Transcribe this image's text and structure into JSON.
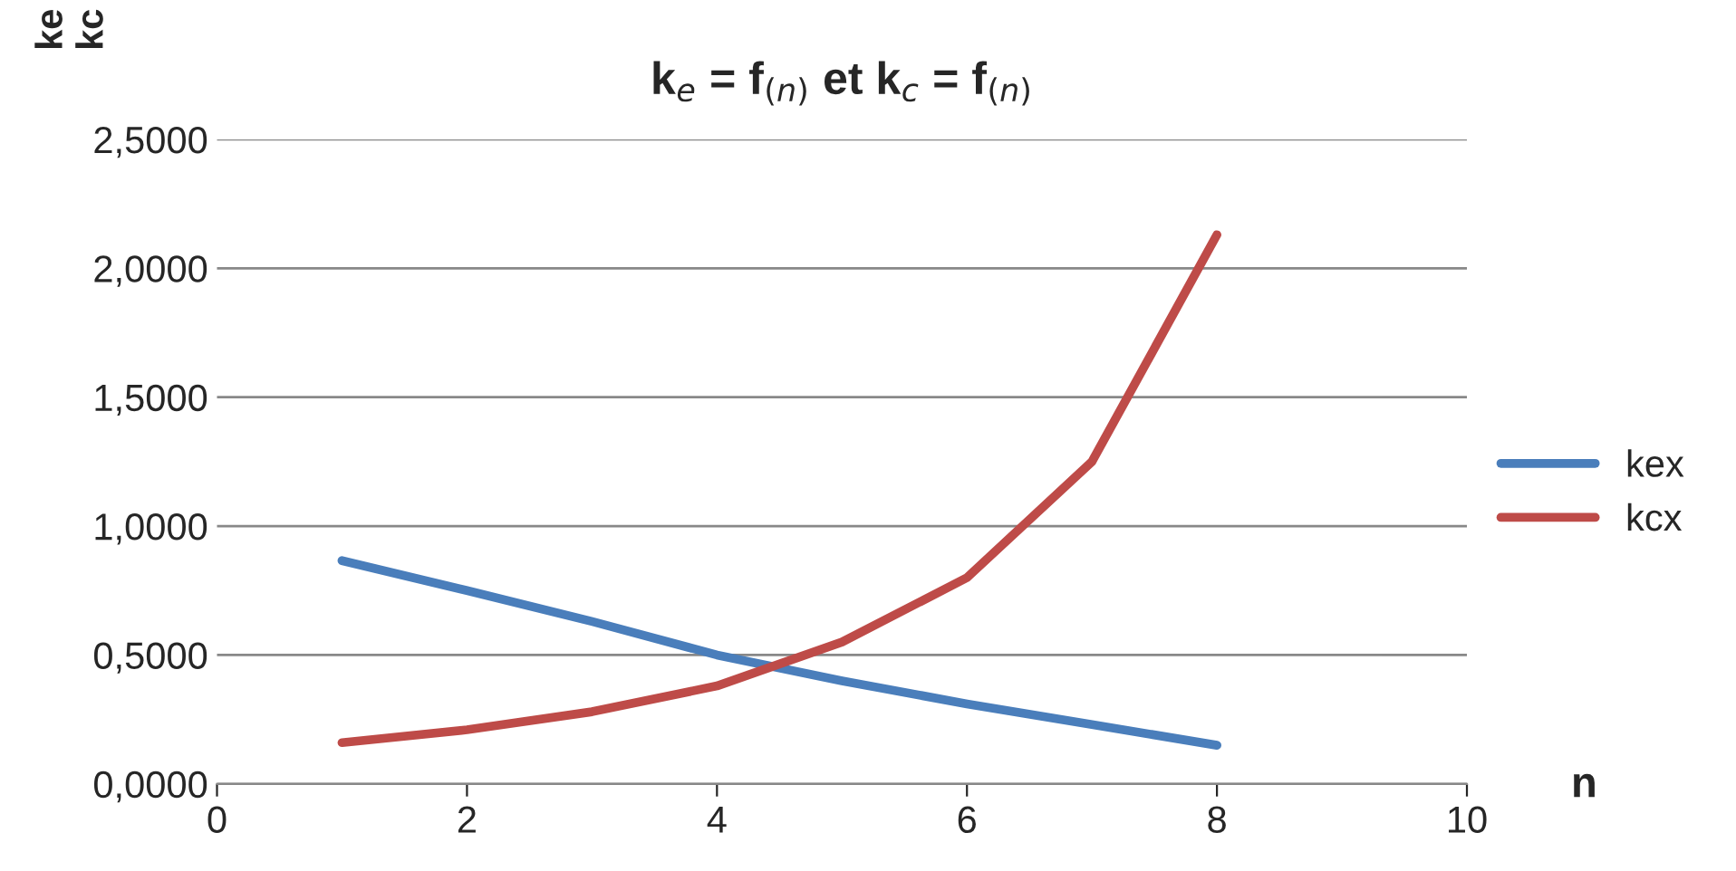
{
  "chart_data": {
    "type": "line",
    "title": "k$_{e}$ = f$_{(n)}$ et k$_{c}$ = f$_{(n)}$",
    "xlabel": "n",
    "ylabel": "ke\nkc",
    "x": [
      1,
      2,
      3,
      4,
      5,
      6,
      7,
      8
    ],
    "series": [
      {
        "name": "kex",
        "color": "#4a7ebb",
        "values": [
          0.866,
          0.75,
          0.63,
          0.5,
          0.4,
          0.31,
          0.23,
          0.15
        ]
      },
      {
        "name": "kcx",
        "color": "#be4b48",
        "values": [
          0.16,
          0.21,
          0.28,
          0.38,
          0.55,
          0.8,
          1.25,
          2.13
        ]
      }
    ],
    "xlim": [
      0,
      10
    ],
    "xticks": [
      0,
      2,
      4,
      6,
      8,
      10
    ],
    "ylim": [
      0,
      2.5
    ],
    "yticks": [
      {
        "value": 0,
        "label": "0,0000"
      },
      {
        "value": 0.5,
        "label": "0,5000"
      },
      {
        "value": 1,
        "label": "1,0000"
      },
      {
        "value": 1.5,
        "label": "1,5000"
      },
      {
        "value": 2,
        "label": "2,0000"
      },
      {
        "value": 2.5,
        "label": "2,5000"
      }
    ],
    "grid": "y",
    "legend": "right",
    "marker": "none",
    "line_style": "solid"
  }
}
